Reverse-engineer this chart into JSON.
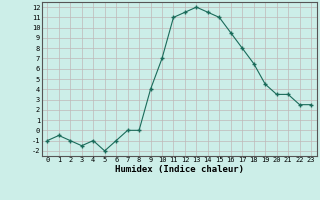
{
  "x": [
    0,
    1,
    2,
    3,
    4,
    5,
    6,
    7,
    8,
    9,
    10,
    11,
    12,
    13,
    14,
    15,
    16,
    17,
    18,
    19,
    20,
    21,
    22,
    23
  ],
  "y": [
    -1,
    -0.5,
    -1,
    -1.5,
    -1,
    -2,
    -1,
    0,
    0,
    4,
    7,
    11,
    11.5,
    12,
    11.5,
    11,
    9.5,
    8,
    6.5,
    4.5,
    3.5,
    3.5,
    2.5,
    2.5
  ],
  "xlabel": "Humidex (Indice chaleur)",
  "xlim": [
    -0.5,
    23.5
  ],
  "ylim": [
    -2.5,
    12.5
  ],
  "yticks": [
    -2,
    -1,
    0,
    1,
    2,
    3,
    4,
    5,
    6,
    7,
    8,
    9,
    10,
    11,
    12
  ],
  "xticks": [
    0,
    1,
    2,
    3,
    4,
    5,
    6,
    7,
    8,
    9,
    10,
    11,
    12,
    13,
    14,
    15,
    16,
    17,
    18,
    19,
    20,
    21,
    22,
    23
  ],
  "line_color": "#1a6b5a",
  "marker_color": "#1a6b5a",
  "bg_color": "#cceee8",
  "grid_color": "#c0b8b8",
  "xlabel_fontsize": 6.5,
  "tick_fontsize": 5.0
}
